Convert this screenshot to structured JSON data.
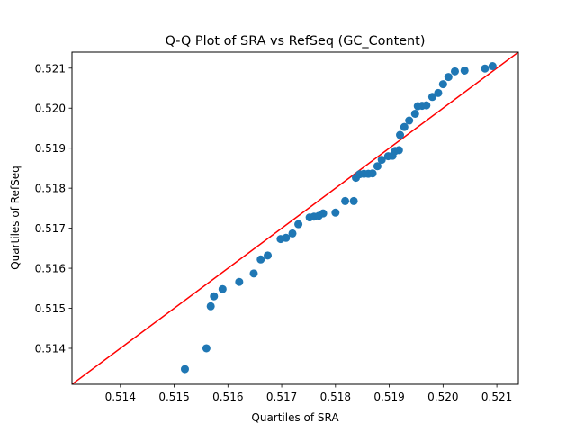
{
  "chart_data": {
    "type": "scatter",
    "title": "Q-Q Plot of SRA vs RefSeq (GC_Content)",
    "xlabel": "Quartiles of SRA",
    "ylabel": "Quartiles of RefSeq",
    "xlim": [
      0.5131,
      0.5214
    ],
    "ylim": [
      0.5131,
      0.5214
    ],
    "xticks": [
      "0.514",
      "0.515",
      "0.516",
      "0.517",
      "0.518",
      "0.519",
      "0.520",
      "0.521"
    ],
    "yticks": [
      "0.514",
      "0.515",
      "0.516",
      "0.517",
      "0.518",
      "0.519",
      "0.520",
      "0.521"
    ],
    "grid": false,
    "reference_line": {
      "slope": 1,
      "intercept": 0,
      "color": "#ff0000"
    },
    "marker_color": "#1f77b4",
    "points": [
      [
        0.5152,
        0.51348
      ],
      [
        0.5156,
        0.514
      ],
      [
        0.51568,
        0.51505
      ],
      [
        0.51574,
        0.5153
      ],
      [
        0.5159,
        0.51548
      ],
      [
        0.51621,
        0.51566
      ],
      [
        0.51648,
        0.51587
      ],
      [
        0.51661,
        0.51622
      ],
      [
        0.51674,
        0.51632
      ],
      [
        0.51698,
        0.51673
      ],
      [
        0.51708,
        0.51676
      ],
      [
        0.5172,
        0.51687
      ],
      [
        0.51731,
        0.5171
      ],
      [
        0.51752,
        0.51727
      ],
      [
        0.5176,
        0.51729
      ],
      [
        0.51769,
        0.51731
      ],
      [
        0.51777,
        0.51737
      ],
      [
        0.518,
        0.51739
      ],
      [
        0.51818,
        0.51768
      ],
      [
        0.51834,
        0.51768
      ],
      [
        0.51838,
        0.51826
      ],
      [
        0.51845,
        0.51835
      ],
      [
        0.51853,
        0.51836
      ],
      [
        0.51861,
        0.51836
      ],
      [
        0.51869,
        0.51837
      ],
      [
        0.51878,
        0.51855
      ],
      [
        0.51886,
        0.51871
      ],
      [
        0.51898,
        0.5188
      ],
      [
        0.51906,
        0.51881
      ],
      [
        0.51911,
        0.51893
      ],
      [
        0.51918,
        0.51895
      ],
      [
        0.5192,
        0.51933
      ],
      [
        0.51928,
        0.51953
      ],
      [
        0.51937,
        0.51969
      ],
      [
        0.51948,
        0.51986
      ],
      [
        0.51953,
        0.52005
      ],
      [
        0.51961,
        0.52006
      ],
      [
        0.51969,
        0.52007
      ],
      [
        0.5198,
        0.52028
      ],
      [
        0.51991,
        0.52038
      ],
      [
        0.52,
        0.5206
      ],
      [
        0.5201,
        0.52078
      ],
      [
        0.52022,
        0.52092
      ],
      [
        0.5204,
        0.52094
      ],
      [
        0.52078,
        0.52099
      ],
      [
        0.52092,
        0.52105
      ]
    ]
  }
}
